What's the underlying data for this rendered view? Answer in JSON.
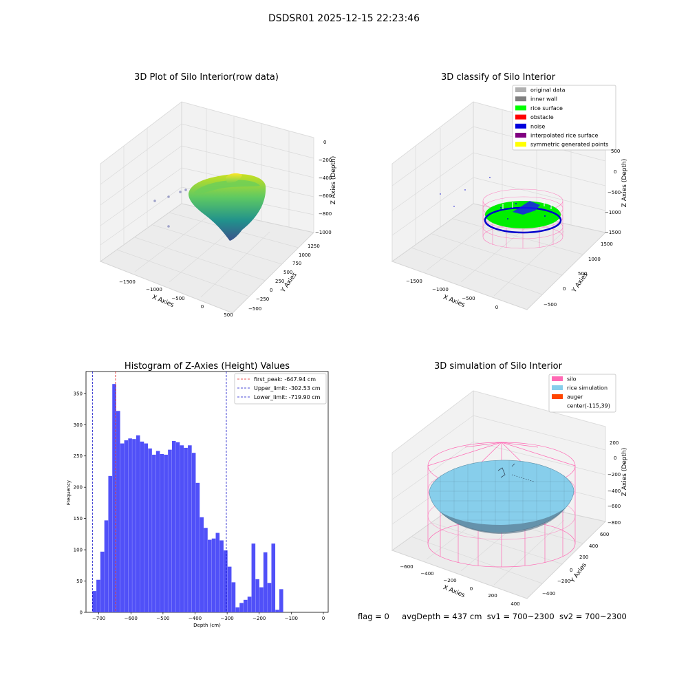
{
  "header": {
    "title": "DSDSR01 2025-12-15 22:23:46"
  },
  "colors": {
    "bar": "#5050f8",
    "first_peak": "#e02020",
    "limit": "#1010c8",
    "silo": "#ff69b4",
    "rice_sim": "#87ceeb",
    "rice_surface": "#00ff00",
    "noise": "#0000dd"
  },
  "panel1": {
    "title": "3D Plot of Silo Interior(row data)",
    "xlabel": "X Axies",
    "ylabel": "Y Axies",
    "zlabel": "Z Axies (Depth)",
    "xticks": [
      "−1500",
      "−1000",
      "−500",
      "0",
      "500"
    ],
    "yticks": [
      "−500",
      "−250",
      "0",
      "250",
      "500",
      "750",
      "1000",
      "1250"
    ],
    "zticks": [
      "0",
      "−200",
      "−400",
      "−600",
      "−800",
      "−1000"
    ]
  },
  "panel2": {
    "title": "3D classify of Silo Interior",
    "xlabel": "X Axies",
    "ylabel": "Y Axies",
    "zlabel": "Z Axies (Depth)",
    "xticks": [
      "−1500",
      "−1000",
      "−500",
      "0"
    ],
    "yticks": [
      "−500",
      "0",
      "500",
      "1000",
      "1500"
    ],
    "zticks": [
      "500",
      "0",
      "−500",
      "−1000",
      "−1500"
    ],
    "legend": [
      {
        "label": "original data",
        "color": "#b0b0b0"
      },
      {
        "label": "inner wall",
        "color": "#808080"
      },
      {
        "label": "rice surface",
        "color": "#00ff00"
      },
      {
        "label": "obstacle",
        "color": "#ff0000"
      },
      {
        "label": "noise",
        "color": "#0000dd"
      },
      {
        "label": "interpolated rice surface",
        "color": "#800080"
      },
      {
        "label": "symmetric generated points",
        "color": "#ffff00"
      }
    ]
  },
  "panel4": {
    "title": "3D simulation of Silo Interior",
    "xlabel": "X Axies",
    "ylabel": "Y Axies",
    "zlabel": "Z Axies (Depth)",
    "xticks": [
      "−600",
      "−400",
      "−200",
      "0",
      "200",
      "400"
    ],
    "yticks": [
      "−400",
      "−200",
      "0",
      "200",
      "400",
      "600"
    ],
    "zticks": [
      "200",
      "0",
      "−200",
      "−400",
      "−600",
      "−800"
    ],
    "legend": [
      {
        "label": "silo",
        "color": "#ff69b4"
      },
      {
        "label": "rice simulation",
        "color": "#87ceeb"
      },
      {
        "label": "auger",
        "color": "#ff4500"
      },
      {
        "label": "center(-115,39)",
        "color": ""
      }
    ]
  },
  "status": {
    "flag": "flag = 0",
    "avg": "avgDepth = 437 cm",
    "sv1": "sv1 = 700~2300",
    "sv2": "sv2 = 700~2300"
  },
  "chart_data": {
    "type": "bar",
    "title": "Histogram of Z-Axies (Height) Values",
    "xlabel": "Depth (cm)",
    "ylabel": "Frequency",
    "xlim": [
      -740,
      15
    ],
    "ylim": [
      0,
      385
    ],
    "xticks": [
      -700,
      -600,
      -500,
      -400,
      -300,
      -200,
      -100,
      0
    ],
    "yticks": [
      0,
      50,
      100,
      150,
      200,
      250,
      300,
      350
    ],
    "bin_start": -720,
    "bin_width": 12.4,
    "values": [
      34,
      52,
      97,
      147,
      218,
      365,
      322,
      270,
      275,
      278,
      277,
      283,
      273,
      270,
      262,
      252,
      258,
      253,
      252,
      260,
      274,
      272,
      267,
      263,
      267,
      255,
      207,
      152,
      135,
      116,
      118,
      127,
      115,
      99,
      73,
      48,
      8,
      15,
      20,
      25,
      110,
      53,
      40,
      96,
      47,
      110,
      4,
      37
    ],
    "lines": [
      {
        "label": "first_peak: -647.94 cm",
        "x": -647.94,
        "color": "#e02020"
      },
      {
        "label": "Upper_limit: -302.53 cm",
        "x": -302.53,
        "color": "#1010c8"
      },
      {
        "label": "Lower_limit: -719.90 cm",
        "x": -719.9,
        "color": "#1010c8"
      }
    ]
  }
}
